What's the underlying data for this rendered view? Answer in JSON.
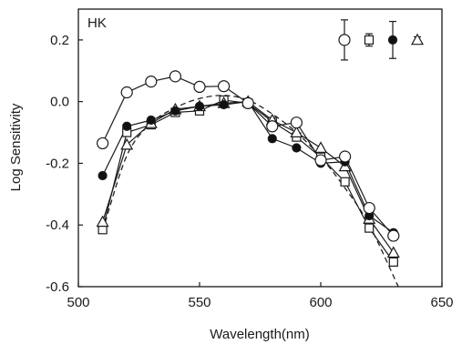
{
  "chart_data": {
    "type": "line",
    "panel_label": "HK",
    "xlabel": "Wavelength(nm)",
    "ylabel": "Log Sensitivity",
    "xlim": [
      500,
      650
    ],
    "ylim": [
      -0.6,
      0.3
    ],
    "xticks": [
      500,
      550,
      600,
      650
    ],
    "yticks": [
      -0.6,
      -0.4,
      -0.2,
      0.0,
      0.2
    ],
    "xtick_labels": [
      "500",
      "550",
      "600",
      "650"
    ],
    "ytick_labels": [
      "-0.6",
      "-0.4",
      "-0.2",
      "0.0",
      "0.2"
    ],
    "x": [
      510,
      520,
      530,
      540,
      550,
      560,
      570,
      580,
      590,
      600,
      610,
      620,
      630
    ],
    "series": [
      {
        "marker": "open-circle",
        "values": [
          -0.135,
          0.03,
          0.065,
          0.082,
          0.048,
          0.05,
          -0.005,
          -0.08,
          -0.068,
          -0.19,
          -0.178,
          -0.345,
          -0.435
        ]
      },
      {
        "marker": "filled-circle",
        "values": [
          -0.24,
          -0.08,
          -0.06,
          -0.03,
          -0.015,
          -0.01,
          0.0,
          -0.12,
          -0.15,
          -0.2,
          -0.195,
          -0.37,
          -0.425
        ]
      },
      {
        "marker": "open-square",
        "values": [
          -0.415,
          -0.1,
          -0.075,
          -0.035,
          -0.03,
          0.005,
          -0.005,
          -0.065,
          -0.115,
          -0.18,
          -0.26,
          -0.41,
          -0.52
        ]
      },
      {
        "marker": "open-triangle",
        "values": [
          -0.39,
          -0.14,
          -0.07,
          -0.025,
          -0.015,
          -0.005,
          0.0,
          -0.06,
          -0.1,
          -0.15,
          -0.21,
          -0.38,
          -0.49
        ]
      }
    ],
    "template": {
      "style": "dashed",
      "x": [
        510,
        520,
        530,
        540,
        550,
        560,
        570,
        580,
        590,
        600,
        610,
        620,
        632
      ],
      "values": [
        -0.42,
        -0.175,
        -0.07,
        -0.02,
        0.01,
        0.02,
        0.005,
        -0.04,
        -0.1,
        -0.18,
        -0.28,
        -0.4,
        -0.6
      ]
    },
    "error_bar_legend": {
      "position": "top-right",
      "items": [
        {
          "marker": "open-circle",
          "half_range": 0.065
        },
        {
          "marker": "open-square",
          "half_range": 0.02
        },
        {
          "marker": "filled-circle",
          "half_range": 0.06
        },
        {
          "marker": "open-triangle",
          "half_range": 0.01
        }
      ]
    },
    "grid": false
  }
}
